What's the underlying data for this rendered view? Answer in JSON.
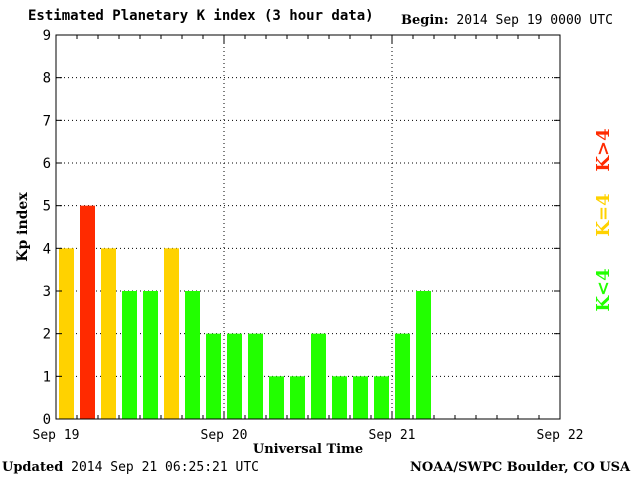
{
  "header": {
    "title": "Estimated Planetary K index (3 hour data)",
    "begin_label": "Begin:",
    "begin_value": "2014 Sep 19 0000 UTC"
  },
  "footer": {
    "updated_label": "Updated",
    "updated_value": "2014 Sep 21 06:25:21 UTC",
    "source": "NOAA/SWPC Boulder, CO USA"
  },
  "chart_data": {
    "type": "bar",
    "title": "Estimated Planetary K index (3 hour data)",
    "xlabel": "Universal Time",
    "ylabel": "Kp index",
    "ylim": [
      0,
      9
    ],
    "yticks": [
      0,
      1,
      2,
      3,
      4,
      5,
      6,
      7,
      8,
      9
    ],
    "xticks": [
      "Sep 19",
      "Sep 20",
      "Sep 21",
      "Sep 22"
    ],
    "interval_hours": 3,
    "total_slots": 24,
    "values": [
      4,
      5,
      4,
      3,
      3,
      4,
      3,
      2,
      2,
      2,
      1,
      1,
      2,
      1,
      1,
      1,
      2,
      3
    ],
    "grid": "dotted",
    "legend": [
      {
        "label": "K<4",
        "color": "#22ff00"
      },
      {
        "label": "K=4",
        "color": "#ffd200"
      },
      {
        "label": "K>4",
        "color": "#ff2a00"
      }
    ],
    "legend_placement": "right"
  }
}
